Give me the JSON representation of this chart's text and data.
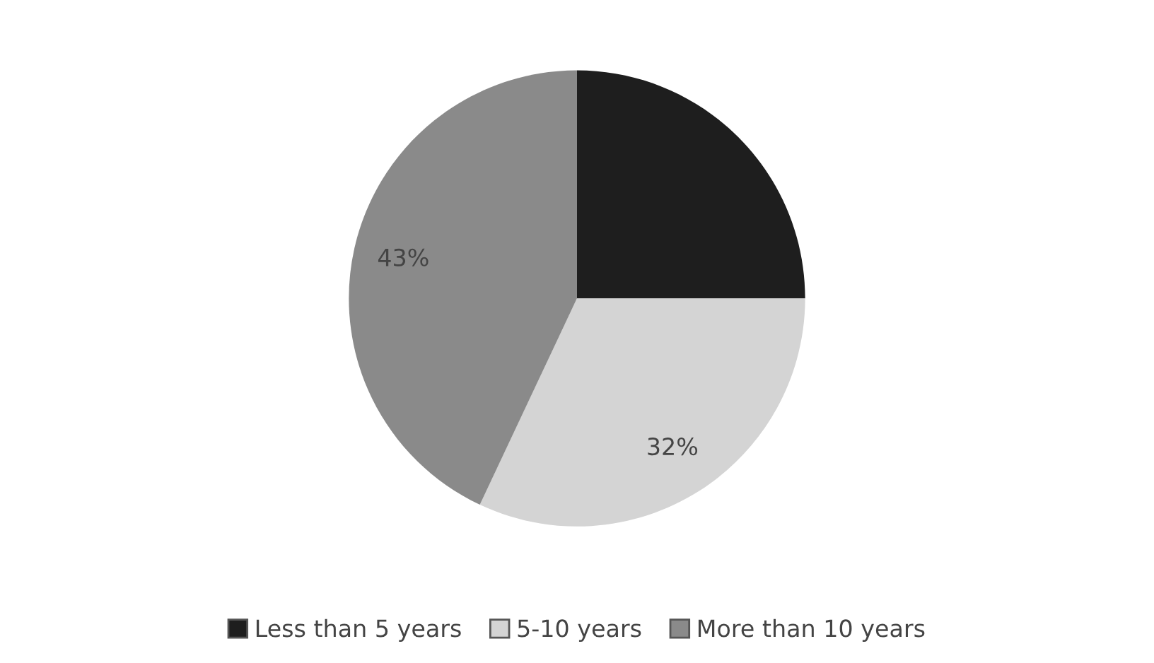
{
  "chart_data": {
    "type": "pie",
    "categories": [
      "Less than 5 years",
      "5-10 years",
      "More than 10 years"
    ],
    "values": [
      25,
      32,
      43
    ],
    "colors": [
      "#1e1e1e",
      "#d4d4d4",
      "#8a8a8a"
    ],
    "value_labels": [
      null,
      "32%",
      "43%"
    ],
    "legend": "bottom"
  }
}
